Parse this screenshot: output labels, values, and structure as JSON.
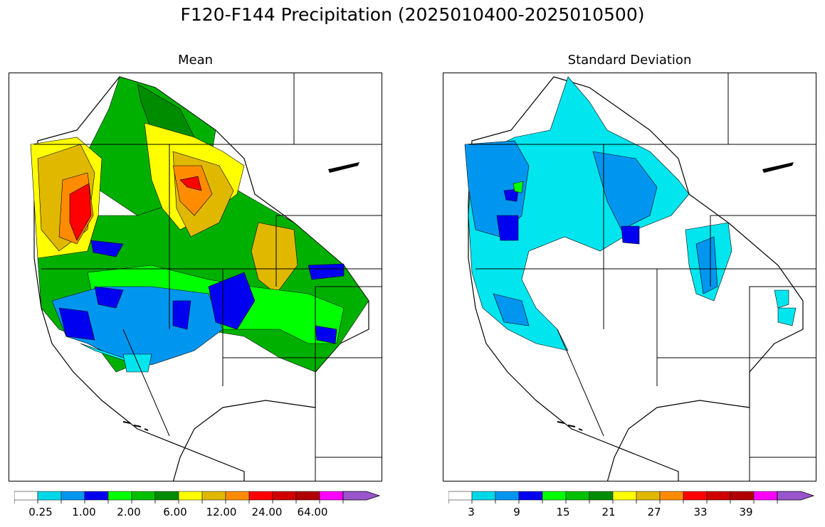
{
  "figure": {
    "title": "F120-F144 Precipitation (2025010400-2025010500)"
  },
  "panels": [
    {
      "id": "mean",
      "title": "Mean",
      "colorbar": {
        "tick_labels": [
          "0.25",
          "1.00",
          "2.00",
          "6.00",
          "12.00",
          "24.00",
          "64.00"
        ],
        "colors": [
          "#ffffff",
          "#00d8e8",
          "#0096f0",
          "#0000f0",
          "#00ff00",
          "#00c000",
          "#008c00",
          "#ffff00",
          "#e0b800",
          "#ff8c00",
          "#ff0000",
          "#d00000",
          "#b00000",
          "#ff00ff",
          "#9955cc"
        ],
        "extend": "max"
      }
    },
    {
      "id": "stddev",
      "title": "Standard Deviation",
      "colorbar": {
        "tick_labels": [
          "3",
          "9",
          "15",
          "21",
          "27",
          "33",
          "39"
        ],
        "colors": [
          "#ffffff",
          "#00d8e8",
          "#0096f0",
          "#0000f0",
          "#00ff00",
          "#00c000",
          "#008c00",
          "#ffff00",
          "#e0b800",
          "#ff8c00",
          "#ff0000",
          "#d00000",
          "#b00000",
          "#ff00ff",
          "#9955cc"
        ],
        "extend": "max"
      }
    }
  ],
  "map_colors": {
    "coast": "#000000",
    "white": "#ffffff",
    "cyan": "#00e5ee",
    "ltblue": "#0096f0",
    "blue": "#0000f0",
    "lime": "#00ff00",
    "green": "#00b000",
    "dkgreen": "#008c00",
    "yellow": "#ffff00",
    "gold": "#e0b800",
    "orange": "#ff8c00",
    "red": "#ff0000"
  }
}
